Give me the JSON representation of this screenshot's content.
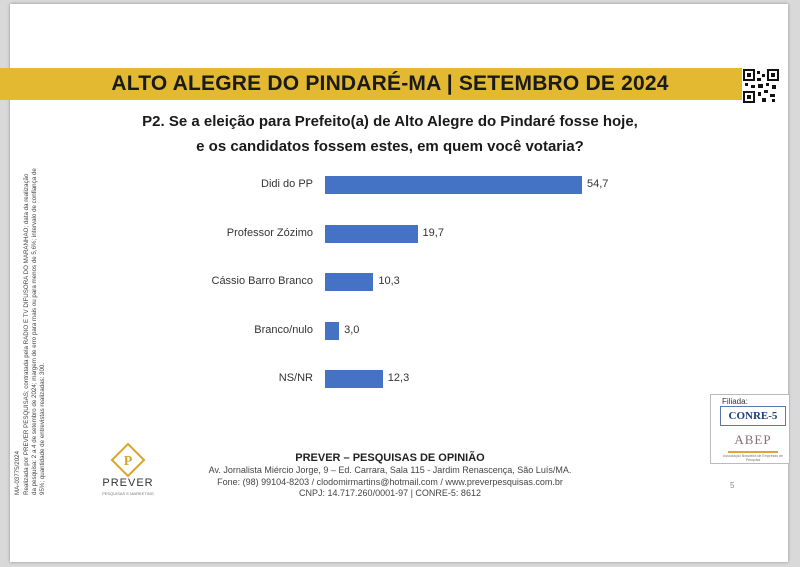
{
  "header": {
    "title": "ALTO ALEGRE DO PINDARÉ-MA | SETEMBRO DE 2024"
  },
  "question": {
    "line1": "P2. Se a eleição para Prefeito(a) de Alto Alegre do Pindaré fosse hoje,",
    "line2": "e os candidatos fossem estes, em quem você votaria?"
  },
  "chart_data": {
    "type": "bar",
    "orientation": "horizontal",
    "categories": [
      "Didi do PP",
      "Professor Zózimo",
      "Cássio Barro Branco",
      "Branco/nulo",
      "NS/NR"
    ],
    "values": [
      54.7,
      19.7,
      10.3,
      3.0,
      12.3
    ],
    "value_labels": [
      "54,7",
      "19,7",
      "10,3",
      "3,0",
      "12,3"
    ],
    "title": "P2. Se a eleição para Prefeito(a) de Alto Alegre do Pindaré fosse hoje, e os candidatos fossem estes, em quem você votaria?",
    "xlabel": "",
    "ylabel": "",
    "xlim": [
      0,
      60
    ],
    "bar_color": "#4472c4",
    "grid": false
  },
  "side_note": {
    "code": "MA-03775/2024",
    "text": "Realizada por PREVER PESQUISAS; contratada pela RADIO E TV DIFUSORA DO MARANHAO; data da realização da pesquisa: 2 a 4 de setembro de 2024; margem de erro para mais ou para menos de 5,6%; intervalo de confiança de 95%; quantidade de entrevistas realizadas: 300."
  },
  "footer": {
    "company": "PREVER – PESQUISAS DE OPINIÃO",
    "address": "Av. Jornalista Miércio Jorge, 9 – Ed. Carrara, Sala 115 - Jardim Renascença, São Luís/MA.",
    "contact": "Fone: (98) 99104-8203 / clodomirmartins@hotmail.com / www.preverpesquisas.com.br",
    "cnpj": "CNPJ: 14.717.260/0001-97 | CONRE-5: 8612"
  },
  "logo": {
    "name": "PREVER",
    "subtitle": "PESQUISAS E MARKETING"
  },
  "filiada": {
    "label": "Filiada:",
    "conre": "CONRE-5",
    "abep": "ABEP",
    "abep_sub": "Associação Brasileira de Empresas de Pesquisa"
  },
  "page_number": "5",
  "colors": {
    "banner": "#e2b930",
    "bar": "#4472c4"
  }
}
